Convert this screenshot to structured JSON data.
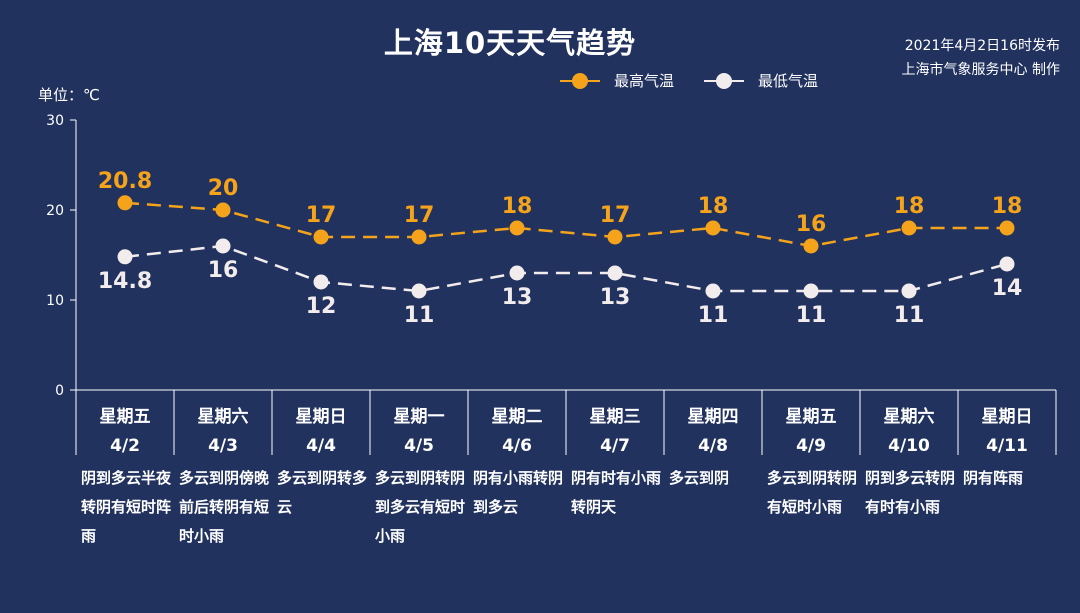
{
  "title": "上海10天天气趋势",
  "source": {
    "line1": "2021年4月2日16时发布",
    "line2": "上海市气象服务中心 制作"
  },
  "unit_label": "单位：℃",
  "legend": {
    "high": "最高气温",
    "low": "最低气温"
  },
  "colors": {
    "background": "#22325f",
    "high": "#f5a31a",
    "low": "#f2ecec"
  },
  "chart_data": {
    "type": "line",
    "ylim": [
      0,
      30
    ],
    "yticks": [
      "0",
      "10",
      "20",
      "30"
    ],
    "grid": false,
    "legend_position": "top-right",
    "weekdays": [
      "星期五",
      "星期六",
      "星期日",
      "星期一",
      "星期二",
      "星期三",
      "星期四",
      "星期五",
      "星期六",
      "星期日"
    ],
    "categories": [
      "4/2",
      "4/3",
      "4/4",
      "4/5",
      "4/6",
      "4/7",
      "4/8",
      "4/9",
      "4/10",
      "4/11"
    ],
    "descriptions": [
      "阴到多云半夜转阴有短时阵雨",
      "多云到阴傍晚前后转阴有短时小雨",
      "多云到阴转多云",
      "多云到阴转阴到多云有短时小雨",
      "阴有小雨转阴到多云",
      "阴有时有小雨转阴天",
      "多云到阴",
      "多云到阴转阴有短时小雨",
      "阴到多云转阴有时有小雨",
      "阴有阵雨"
    ],
    "series": [
      {
        "name": "最高气温",
        "values": [
          20.8,
          20,
          17,
          17,
          18,
          17,
          18,
          16,
          18,
          18
        ],
        "labels": [
          "20.8",
          "20",
          "17",
          "17",
          "18",
          "17",
          "18",
          "16",
          "18",
          "18"
        ]
      },
      {
        "name": "最低气温",
        "values": [
          14.8,
          16,
          12,
          11,
          13,
          13,
          11,
          11,
          11,
          14
        ],
        "labels": [
          "14.8",
          "16",
          "12",
          "11",
          "13",
          "13",
          "11",
          "11",
          "11",
          "14"
        ]
      }
    ]
  }
}
